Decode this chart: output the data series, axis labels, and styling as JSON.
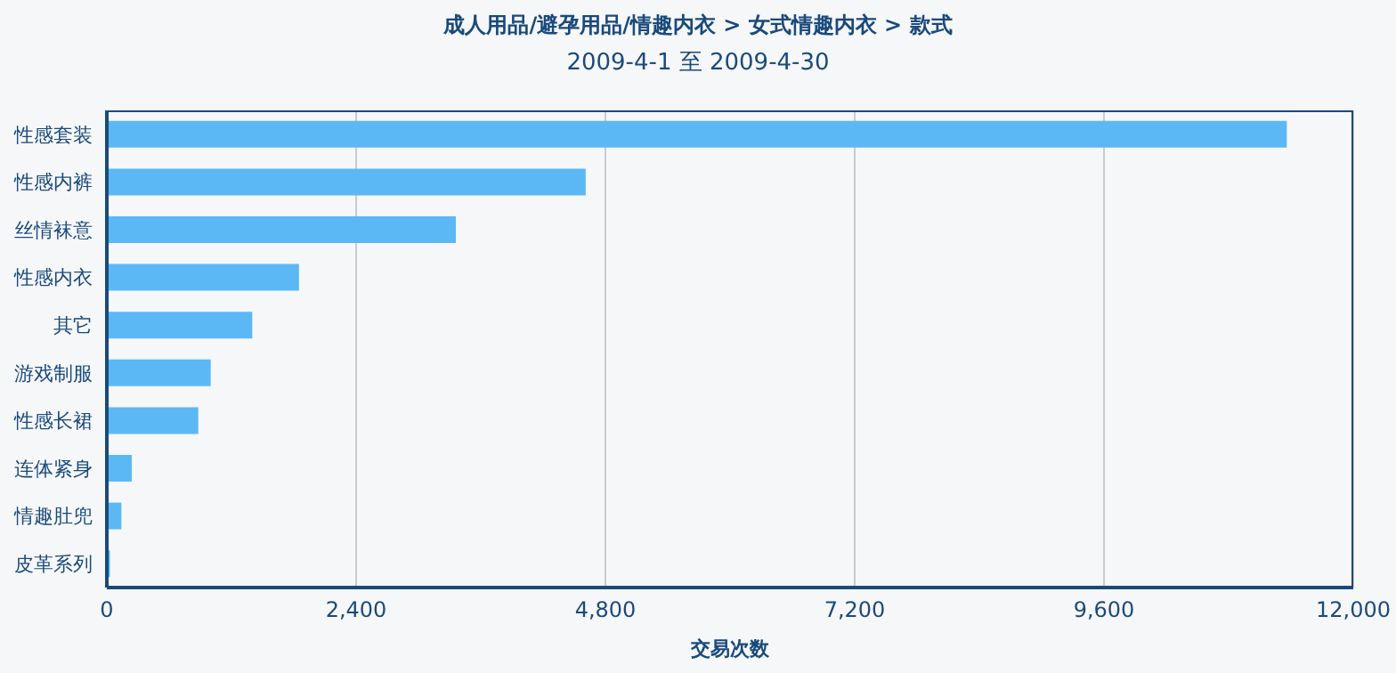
{
  "chart_data": {
    "type": "bar",
    "orientation": "horizontal",
    "title": "成人用品/避孕用品/情趣内衣 > 女式情趣内衣 > 款式",
    "subtitle": "2009-4-1 至 2009-4-30",
    "xlabel": "交易次数",
    "categories": [
      "性感套装",
      "性感内裤",
      "丝情袜意",
      "性感内衣",
      "其它",
      "游戏制服",
      "性感长裙",
      "连体紧身",
      "情趣肚兜",
      "皮革系列"
    ],
    "values": [
      11360,
      4610,
      3360,
      1850,
      1400,
      1000,
      880,
      240,
      140,
      30
    ],
    "color": "#5bb8f5",
    "xlim": [
      0,
      12000
    ],
    "xticks": [
      0,
      {
        "value": 2400,
        "label": "2,400"
      },
      {
        "value": 4800,
        "label": "4,800"
      },
      {
        "value": 7200,
        "label": "7,200"
      },
      {
        "value": 9600,
        "label": "9,600"
      },
      {
        "value": 12000,
        "label": "12,000"
      }
    ],
    "grid": "x"
  }
}
